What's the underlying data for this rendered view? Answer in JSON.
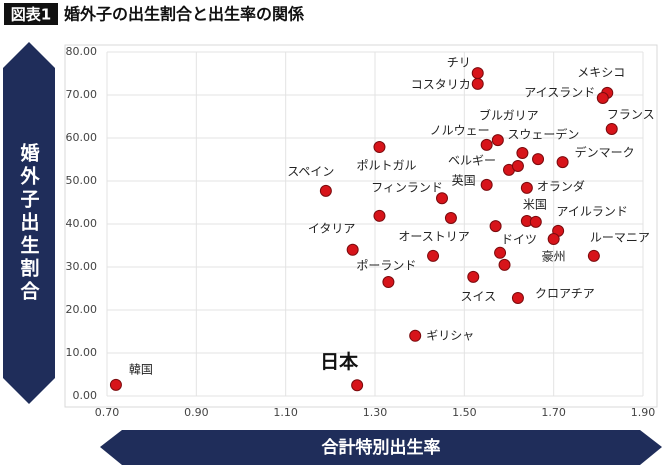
{
  "chart_data": {
    "type": "scatter",
    "figure_label": "図表1",
    "title": "婚外子の出生割合と出生率の関係",
    "x_label": "合計特別出生率",
    "y_label": "婚外子出生割合",
    "color": "#d7141a",
    "grid": true,
    "xlim": [
      0.7,
      1.9
    ],
    "ylim": [
      0,
      80
    ],
    "xticks": [
      {
        "value": 0.7,
        "label": "0.70"
      },
      {
        "value": 0.9,
        "label": "0.90"
      },
      {
        "value": 1.1,
        "label": "1.10"
      },
      {
        "value": 1.3,
        "label": "1.30"
      },
      {
        "value": 1.5,
        "label": "1.50"
      },
      {
        "value": 1.7,
        "label": "1.70"
      },
      {
        "value": 1.9,
        "label": "1.90"
      }
    ],
    "yticks": [
      {
        "value": 0,
        "label": "0.00"
      },
      {
        "value": 10,
        "label": "10.00"
      },
      {
        "value": 20,
        "label": "20.00"
      },
      {
        "value": 30,
        "label": "30.00"
      },
      {
        "value": 40,
        "label": "40.00"
      },
      {
        "value": 50,
        "label": "50.00"
      },
      {
        "value": 60,
        "label": "60.00"
      },
      {
        "value": 70,
        "label": "70.00"
      },
      {
        "value": 80,
        "label": "80.00"
      }
    ],
    "x": [
      0.72,
      1.26,
      1.39,
      1.33,
      1.25,
      1.19,
      1.31,
      1.31,
      1.47,
      1.45,
      1.43,
      1.55,
      1.6,
      1.62,
      1.55,
      1.575,
      1.53,
      1.53,
      1.63,
      1.665,
      1.72,
      1.82,
      1.81,
      1.83,
      1.64,
      1.64,
      1.66,
      1.57,
      1.71,
      1.7,
      1.79,
      1.58,
      1.59,
      1.52,
      1.62
    ],
    "values": [
      2.6,
      2.5,
      14.0,
      26.5,
      34.0,
      47.7,
      57.9,
      41.9,
      41.4,
      46.0,
      32.6,
      49.1,
      52.6,
      53.5,
      58.4,
      59.5,
      75.1,
      72.6,
      56.5,
      55.1,
      54.4,
      70.5,
      69.3,
      62.1,
      48.4,
      40.7,
      40.5,
      39.5,
      38.4,
      36.5,
      32.6,
      33.3,
      30.5,
      27.7,
      22.8
    ],
    "point_labels": [
      "韓国",
      "日本",
      "ギリシャ",
      "ポーランド",
      "イタリア",
      "スペイン",
      "ポルトガル",
      null,
      null,
      "フィンランド",
      "オーストリア",
      "英国",
      "ベルギー",
      null,
      "ノルウェー",
      "ブルガリア",
      "チリ",
      "コスタリカ",
      "スウェーデン",
      null,
      "デンマーク",
      "メキシコ",
      "アイスランド",
      "フランス",
      "オランダ",
      "米国",
      null,
      null,
      "アイルランド",
      "豪州",
      "ルーマニア",
      "ドイツ",
      null,
      "スイス",
      "クロアチア"
    ]
  }
}
